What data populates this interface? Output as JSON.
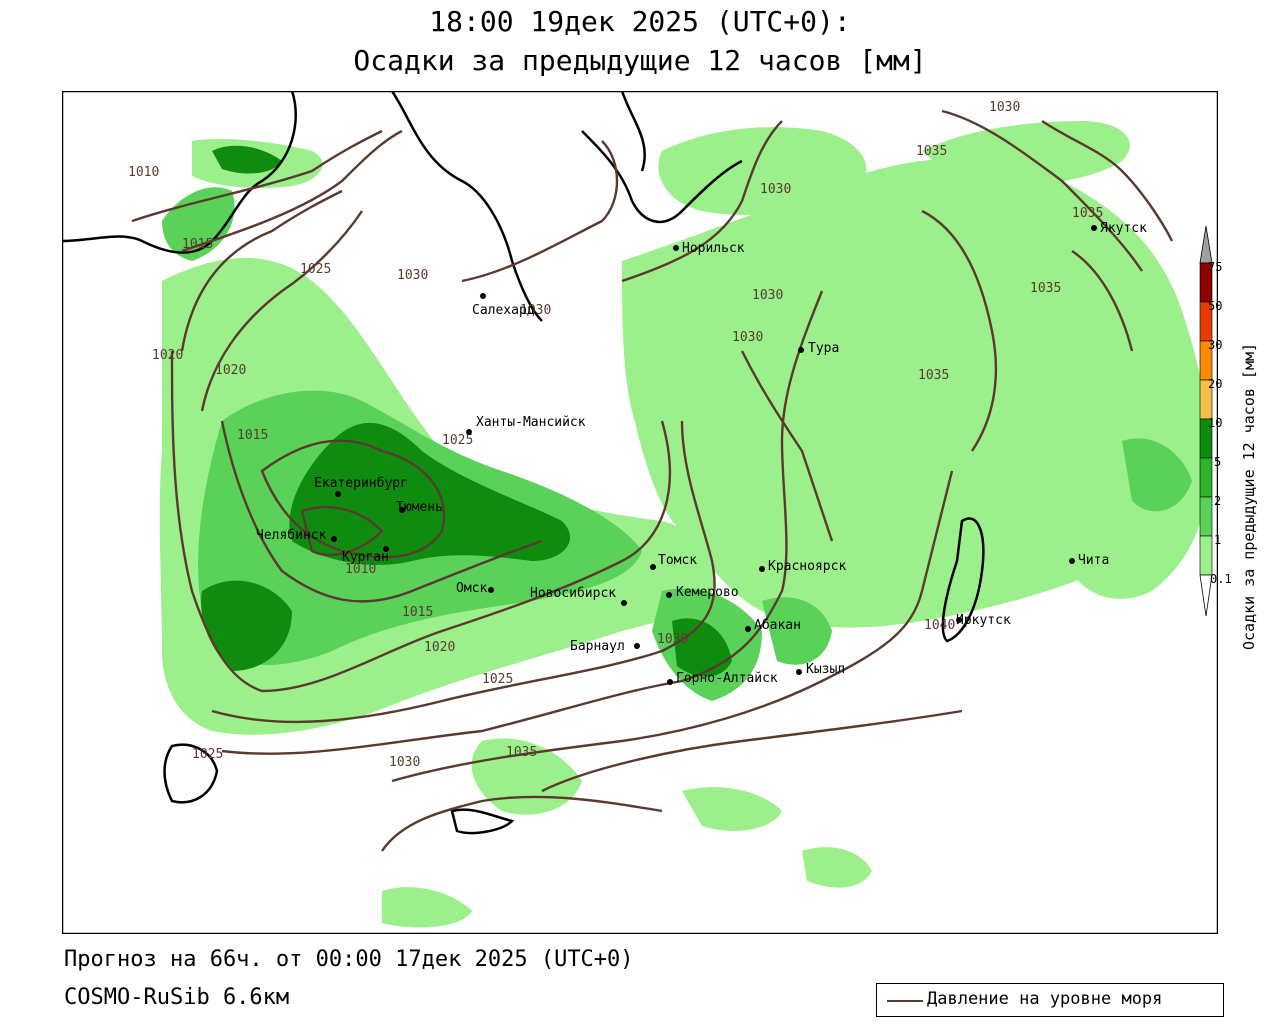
{
  "header": {
    "title_line1": "18:00 19дек 2025 (UTC+0):",
    "title_line2": "Осадки за предыдущие 12 часов [мм]"
  },
  "footer": {
    "forecast": "Прогноз на 66ч. от 00:00 17дек 2025 (UTC+0)",
    "model": "COSMO-RuSib 6.6км"
  },
  "legend": {
    "pressure_label": "Давление на уровне моря",
    "pressure_color": "#5a3a2e"
  },
  "colorbar": {
    "label": "Осадки за предыдущие 12 часов [мм]",
    "ticks": [
      "0.1",
      "1",
      "2",
      "5",
      "10",
      "20",
      "30",
      "50",
      "75"
    ],
    "colors": [
      "#ffffff",
      "#9cf08c",
      "#5ad25a",
      "#2db42d",
      "#0f8c0f",
      "#f5c04a",
      "#fa8c00",
      "#e63c00",
      "#b40000",
      "#8c0000",
      "#a0a0a0"
    ]
  },
  "cities": [
    {
      "name": "Норильск"
    },
    {
      "name": "Якутск"
    },
    {
      "name": "Салехард"
    },
    {
      "name": "Тура"
    },
    {
      "name": "Ханты-Мансийск"
    },
    {
      "name": "Екатеринбург"
    },
    {
      "name": "Тюмень"
    },
    {
      "name": "Челябинск"
    },
    {
      "name": "Курган"
    },
    {
      "name": "Омск"
    },
    {
      "name": "Томск"
    },
    {
      "name": "Новосибирск"
    },
    {
      "name": "Кемерово"
    },
    {
      "name": "Красноярск"
    },
    {
      "name": "Барнаул"
    },
    {
      "name": "Абакан"
    },
    {
      "name": "Горно-Алтайск"
    },
    {
      "name": "Кызыл"
    },
    {
      "name": "Иркутск"
    },
    {
      "name": "Чита"
    }
  ],
  "isobars": [
    "1010",
    "1015",
    "1020",
    "1025",
    "1030",
    "1035",
    "1040"
  ]
}
